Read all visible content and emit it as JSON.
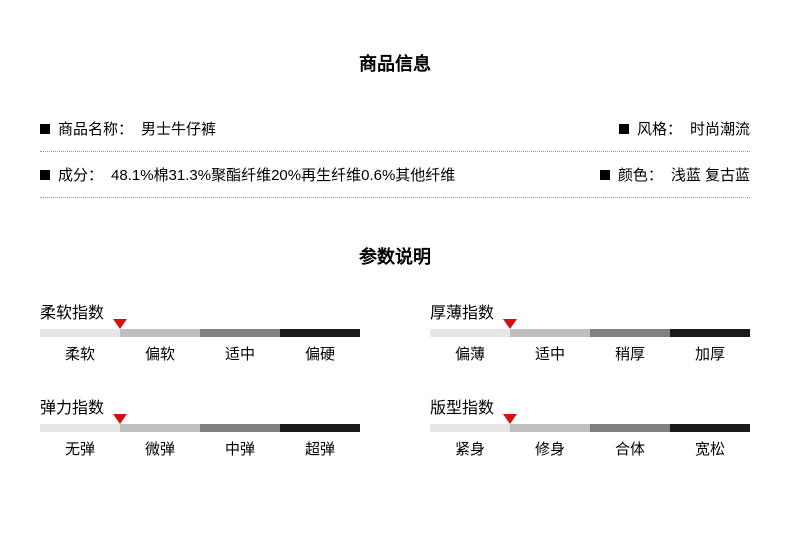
{
  "product_info": {
    "title": "商品信息",
    "rows": [
      {
        "left_label": "商品名称：",
        "left_value": "男士牛仔裤",
        "right_label": "风格：",
        "right_value": "时尚潮流"
      },
      {
        "left_label": "成分：",
        "left_value": "48.1%棉31.3%聚酯纤维20%再生纤维0.6%其他纤维",
        "right_label": "颜色：",
        "right_value": "浅蓝 复古蓝"
      }
    ]
  },
  "params": {
    "title": "参数说明",
    "indices": [
      {
        "title": "柔软指数",
        "labels": [
          "柔软",
          "偏软",
          "适中",
          "偏硬"
        ],
        "seg_colors": [
          "#e6e6e6",
          "#bfbfbf",
          "#808080",
          "#1a1a1a"
        ],
        "marker_pos_pct": 25,
        "marker_color": "#d41212"
      },
      {
        "title": "厚薄指数",
        "labels": [
          "偏薄",
          "适中",
          "稍厚",
          "加厚"
        ],
        "seg_colors": [
          "#e6e6e6",
          "#bfbfbf",
          "#808080",
          "#1a1a1a"
        ],
        "marker_pos_pct": 25,
        "marker_color": "#d41212"
      },
      {
        "title": "弹力指数",
        "labels": [
          "无弹",
          "微弹",
          "中弹",
          "超弹"
        ],
        "seg_colors": [
          "#e6e6e6",
          "#bfbfbf",
          "#808080",
          "#1a1a1a"
        ],
        "marker_pos_pct": 25,
        "marker_color": "#d41212"
      },
      {
        "title": "版型指数",
        "labels": [
          "紧身",
          "修身",
          "合体",
          "宽松"
        ],
        "seg_colors": [
          "#e6e6e6",
          "#bfbfbf",
          "#808080",
          "#1a1a1a"
        ],
        "marker_pos_pct": 25,
        "marker_color": "#d41212"
      }
    ]
  }
}
